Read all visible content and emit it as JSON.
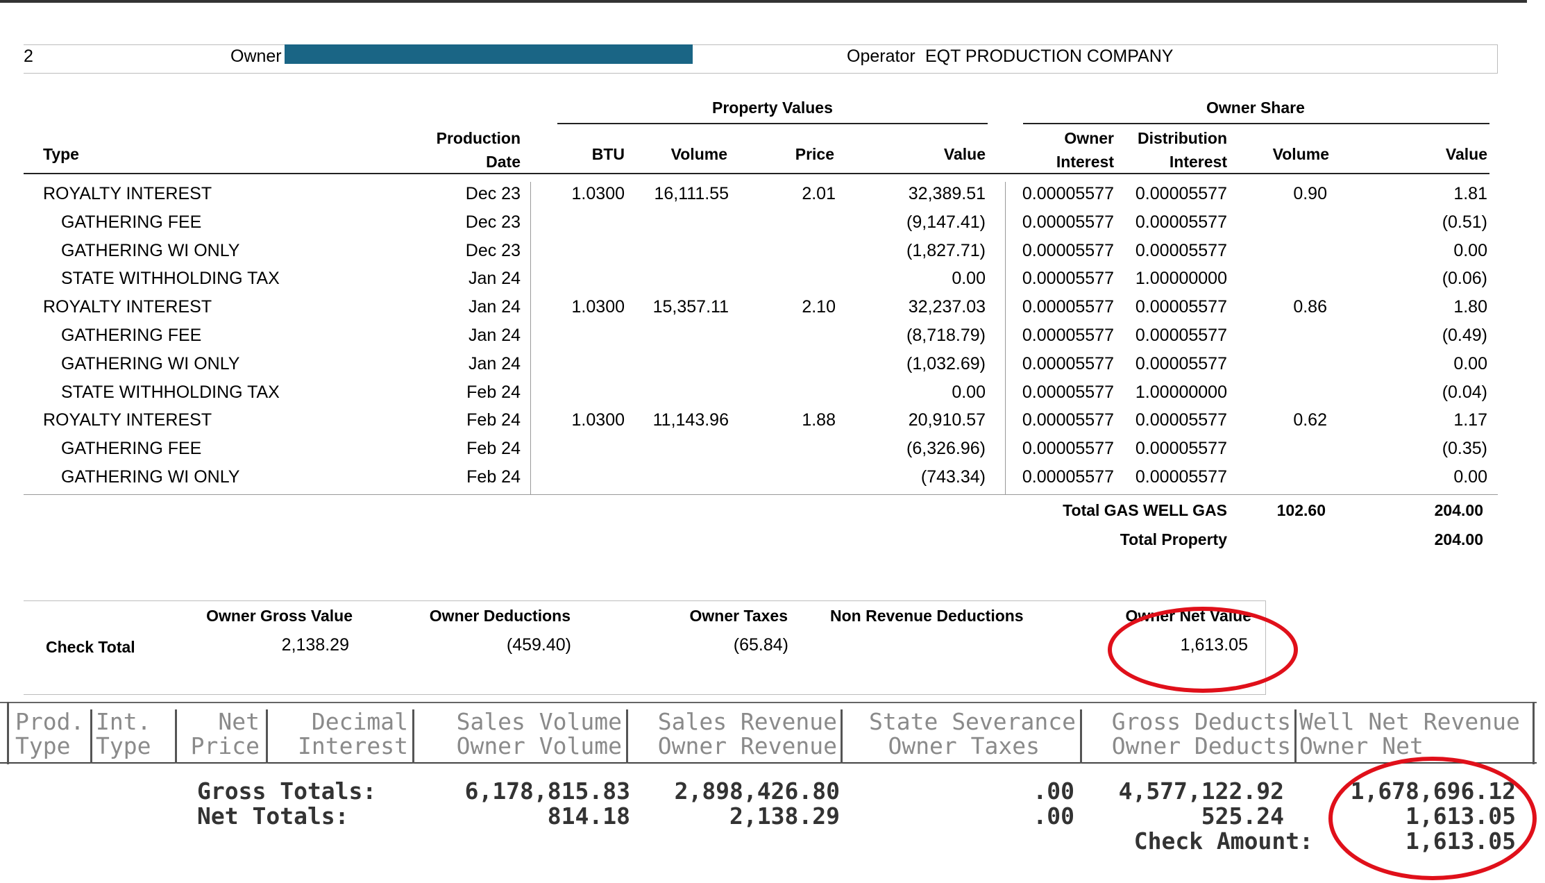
{
  "header": {
    "left_fragment": "2",
    "owner_label": "Owner",
    "operator_label": "Operator",
    "operator_name": "EQT PRODUCTION COMPANY"
  },
  "table": {
    "group_property_values": "Property Values",
    "group_owner_share": "Owner Share",
    "col_type": "Type",
    "col_prod_date_1": "Production",
    "col_prod_date_2": "Date",
    "col_btu": "BTU",
    "col_volume": "Volume",
    "col_price": "Price",
    "col_value": "Value",
    "col_owner_interest_1": "Owner",
    "col_owner_interest_2": "Interest",
    "col_dist_interest_1": "Distribution",
    "col_dist_interest_2": "Interest",
    "col_share_volume": "Volume",
    "col_share_value": "Value",
    "rows": [
      {
        "type": "ROYALTY INTEREST",
        "date": "Dec 23",
        "btu": "1.0300",
        "volume": "16,111.55",
        "price": "2.01",
        "value": "32,389.51",
        "owner_interest": "0.00005577",
        "dist_interest": "0.00005577",
        "share_volume": "0.90",
        "share_value": "1.81"
      },
      {
        "type": "GATHERING FEE",
        "date": "Dec 23",
        "btu": "",
        "volume": "",
        "price": "",
        "value": "(9,147.41)",
        "owner_interest": "0.00005577",
        "dist_interest": "0.00005577",
        "share_volume": "",
        "share_value": "(0.51)"
      },
      {
        "type": "GATHERING WI ONLY",
        "date": "Dec 23",
        "btu": "",
        "volume": "",
        "price": "",
        "value": "(1,827.71)",
        "owner_interest": "0.00005577",
        "dist_interest": "0.00005577",
        "share_volume": "",
        "share_value": "0.00"
      },
      {
        "type": "STATE WITHHOLDING TAX",
        "date": "Jan 24",
        "btu": "",
        "volume": "",
        "price": "",
        "value": "0.00",
        "owner_interest": "0.00005577",
        "dist_interest": "1.00000000",
        "share_volume": "",
        "share_value": "(0.06)"
      },
      {
        "type": "ROYALTY INTEREST",
        "date": "Jan 24",
        "btu": "1.0300",
        "volume": "15,357.11",
        "price": "2.10",
        "value": "32,237.03",
        "owner_interest": "0.00005577",
        "dist_interest": "0.00005577",
        "share_volume": "0.86",
        "share_value": "1.80"
      },
      {
        "type": "GATHERING FEE",
        "date": "Jan 24",
        "btu": "",
        "volume": "",
        "price": "",
        "value": "(8,718.79)",
        "owner_interest": "0.00005577",
        "dist_interest": "0.00005577",
        "share_volume": "",
        "share_value": "(0.49)"
      },
      {
        "type": "GATHERING WI ONLY",
        "date": "Jan 24",
        "btu": "",
        "volume": "",
        "price": "",
        "value": "(1,032.69)",
        "owner_interest": "0.00005577",
        "dist_interest": "0.00005577",
        "share_volume": "",
        "share_value": "0.00"
      },
      {
        "type": "STATE WITHHOLDING TAX",
        "date": "Feb 24",
        "btu": "",
        "volume": "",
        "price": "",
        "value": "0.00",
        "owner_interest": "0.00005577",
        "dist_interest": "1.00000000",
        "share_volume": "",
        "share_value": "(0.04)"
      },
      {
        "type": "ROYALTY INTEREST",
        "date": "Feb 24",
        "btu": "1.0300",
        "volume": "11,143.96",
        "price": "1.88",
        "value": "20,910.57",
        "owner_interest": "0.00005577",
        "dist_interest": "0.00005577",
        "share_volume": "0.62",
        "share_value": "1.17"
      },
      {
        "type": "GATHERING FEE",
        "date": "Feb 24",
        "btu": "",
        "volume": "",
        "price": "",
        "value": "(6,326.96)",
        "owner_interest": "0.00005577",
        "dist_interest": "0.00005577",
        "share_volume": "",
        "share_value": "(0.35)"
      },
      {
        "type": "GATHERING WI ONLY",
        "date": "Feb 24",
        "btu": "",
        "volume": "",
        "price": "",
        "value": "(743.34)",
        "owner_interest": "0.00005577",
        "dist_interest": "0.00005577",
        "share_volume": "",
        "share_value": "0.00"
      }
    ],
    "total_gas_label": "Total GAS WELL GAS",
    "total_gas_volume": "102.60",
    "total_gas_value": "204.00",
    "total_property_label": "Total Property",
    "total_property_value": "204.00"
  },
  "check": {
    "label": "Check Total",
    "gross_header": "Owner Gross Value",
    "gross_value": "2,138.29",
    "deductions_header": "Owner Deductions",
    "deductions_value": "(459.40)",
    "taxes_header": "Owner Taxes",
    "taxes_value": "(65.84)",
    "nonrev_header": "Non Revenue Deductions",
    "net_header": "Owner Net Value",
    "net_value": "1,613.05"
  },
  "printout": {
    "h1a": "Prod.",
    "h1b": "Type",
    "h2a": "Int.",
    "h2b": "Type",
    "h3a": "Net",
    "h3b": "Price",
    "h4a": "Decimal",
    "h4b": "Interest",
    "h5a": "Sales Volume",
    "h5b": "Owner Volume",
    "h6a": "Sales Revenue",
    "h6b": "Owner Revenue",
    "h7a": "State Severance",
    "h7b": "Owner Taxes",
    "h8a": "Gross Deducts",
    "h8b": "Owner Deducts",
    "h9a": "Well Net Revenue",
    "h9b": "Owner Net",
    "gross_label": "Gross Totals:",
    "net_label": "Net Totals:",
    "gross_sales_volume": "6,178,815.83",
    "gross_sales_revenue": "2,898,426.80",
    "gross_severance": ".00",
    "gross_deducts": "4,577,122.92",
    "gross_net_revenue": "1,678,696.12",
    "net_volume": "814.18",
    "net_revenue": "2,138.29",
    "net_taxes": ".00",
    "net_deducts": "525.24",
    "net_owner_net": "1,613.05",
    "check_label": "Check Amount:",
    "check_amount": "1,613.05"
  },
  "colors": {
    "owner_bar": "#1a6585",
    "annotation": "#e0101a"
  }
}
